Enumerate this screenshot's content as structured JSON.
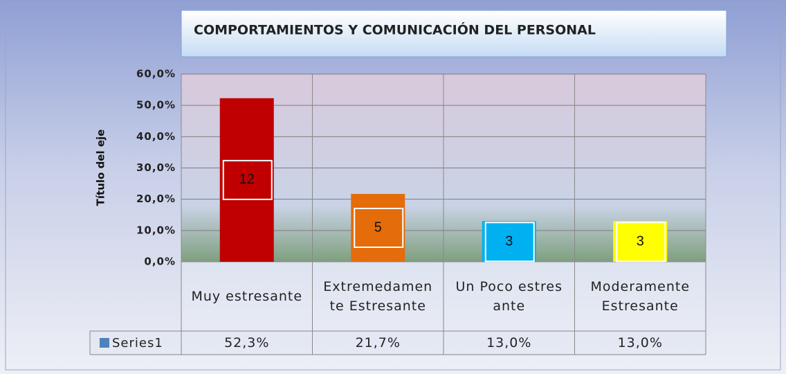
{
  "chart_data": {
    "type": "bar",
    "title": "COMPORTAMIENTOS Y COMUNICACIÓN DEL PERSONAL",
    "y_axis_label": "Título del eje",
    "categories": [
      "Muy estresante",
      "Extremedamente Estresante",
      "Un Poco estresante",
      "Moderamente Estresante"
    ],
    "series": [
      {
        "name": "Series1",
        "color": "#4f81bd",
        "values": [
          52.3,
          21.7,
          13.0,
          13.0
        ],
        "value_labels": [
          "52,3%",
          "21,7%",
          "13,0%",
          "13,0%"
        ],
        "bar_colors": [
          "#c00000",
          "#e46c0a",
          "#00b0f0",
          "#ffff00"
        ],
        "data_labels": [
          12,
          5,
          3,
          3
        ]
      }
    ],
    "ylim": [
      0,
      60
    ],
    "yticks": [
      {
        "value": 0,
        "label": "0,0%"
      },
      {
        "value": 10,
        "label": "10,0%"
      },
      {
        "value": 20,
        "label": "20,0%"
      },
      {
        "value": 30,
        "label": "30,0%"
      },
      {
        "value": 40,
        "label": "40,0%"
      },
      {
        "value": 50,
        "label": "50,0%"
      },
      {
        "value": 60,
        "label": "60,0%"
      }
    ],
    "grid": true
  }
}
